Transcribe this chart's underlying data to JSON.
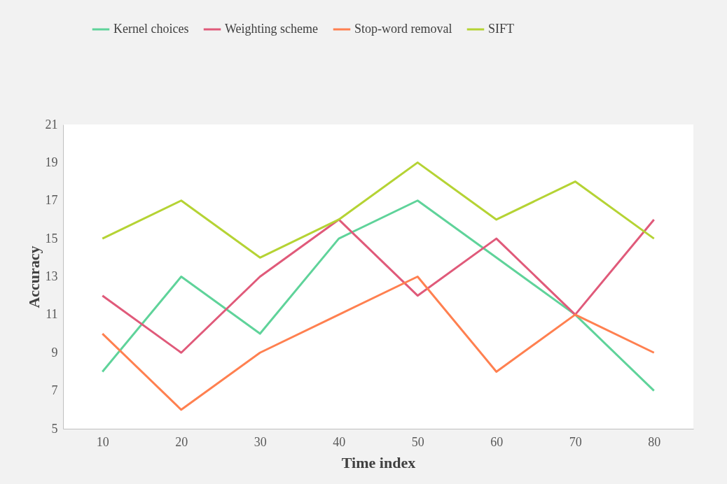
{
  "chart_data": {
    "type": "line",
    "xlabel": "Time index",
    "ylabel": "Accuracy",
    "categories": [
      "10",
      "20",
      "30",
      "40",
      "50",
      "60",
      "70",
      "80"
    ],
    "ylim": [
      5,
      21
    ],
    "yticks": [
      5,
      7,
      9,
      11,
      13,
      15,
      17,
      19,
      21
    ],
    "legend": "top",
    "series": [
      {
        "name": "Kernel choices",
        "color": "#5fd39a",
        "values": [
          8,
          13,
          10,
          15,
          17,
          14,
          11,
          7
        ]
      },
      {
        "name": "Weighting scheme",
        "color": "#e05a7a",
        "values": [
          12,
          9,
          13,
          16,
          12,
          15,
          11,
          16
        ]
      },
      {
        "name": "Stop-word removal",
        "color": "#ff8050",
        "values": [
          10,
          6,
          9,
          11,
          13,
          8,
          11,
          9
        ]
      },
      {
        "name": "SIFT",
        "color": "#b5d334",
        "values": [
          15,
          17,
          14,
          16,
          19,
          16,
          18,
          15
        ]
      }
    ]
  }
}
